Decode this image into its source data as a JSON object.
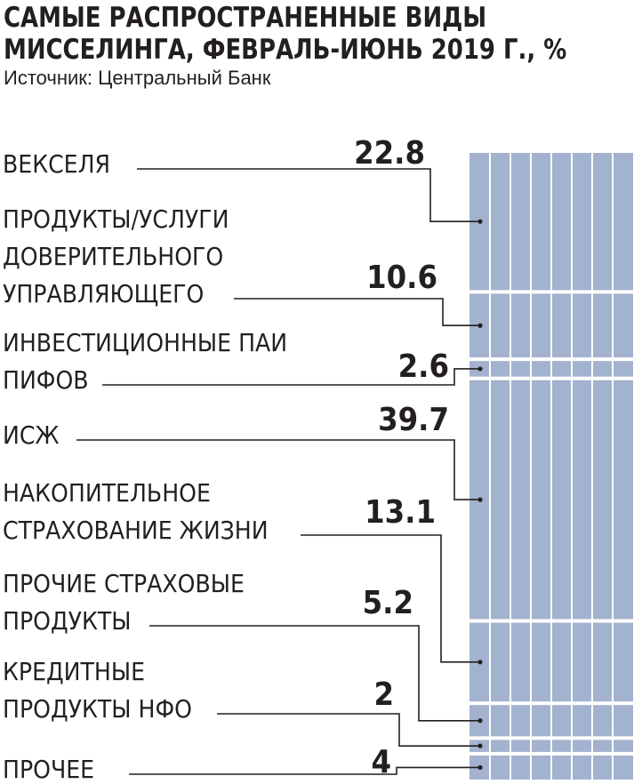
{
  "title_line1": "САМЫЕ РАСПРОСТРАНЕННЫЕ ВИДЫ",
  "title_line2": "МИССЕЛИНГА,  ФЕВРАЛЬ-ИЮНЬ 2019 Г., %",
  "source": "Источник: Центральный Банк",
  "colors": {
    "bar": "#a3b2cf",
    "divider": "#ffffff",
    "text": "#231f20",
    "leader": "#231f20"
  },
  "chart_data": {
    "type": "bar",
    "stacked": true,
    "orientation": "vertical-stack",
    "unit": "%",
    "title": "САМЫЕ РАСПРОСТРАНЕННЫЕ ВИДЫ МИССЕЛИНГА,  ФЕВРАЛЬ-ИЮНЬ 2019 Г., %",
    "categories": [
      [
        "ВЕКСЕЛЯ"
      ],
      [
        "ПРОДУКТЫ/УСЛУГИ",
        "ДОВЕРИТЕЛЬНОГО",
        "УПРАВЛЯЮЩЕГО"
      ],
      [
        "ИНВЕСТИЦИОННЫЕ ПАИ",
        "ПИФОВ"
      ],
      [
        "ИСЖ"
      ],
      [
        "НАКОПИТЕЛЬНОЕ",
        "СТРАХОВАНИЕ ЖИЗНИ"
      ],
      [
        "ПРОЧИЕ СТРАХОВЫЕ",
        "ПРОДУКТЫ"
      ],
      [
        "КРЕДИТНЫЕ",
        "ПРОДУКТЫ НФО"
      ],
      [
        "ПРОЧЕЕ"
      ]
    ],
    "values": [
      22.8,
      10.6,
      2.6,
      39.7,
      13.1,
      5.2,
      2,
      4
    ],
    "value_labels": [
      "22.8",
      "10.6",
      "2.6",
      "39.7",
      "13.1",
      "5.2",
      "2",
      "4"
    ]
  }
}
